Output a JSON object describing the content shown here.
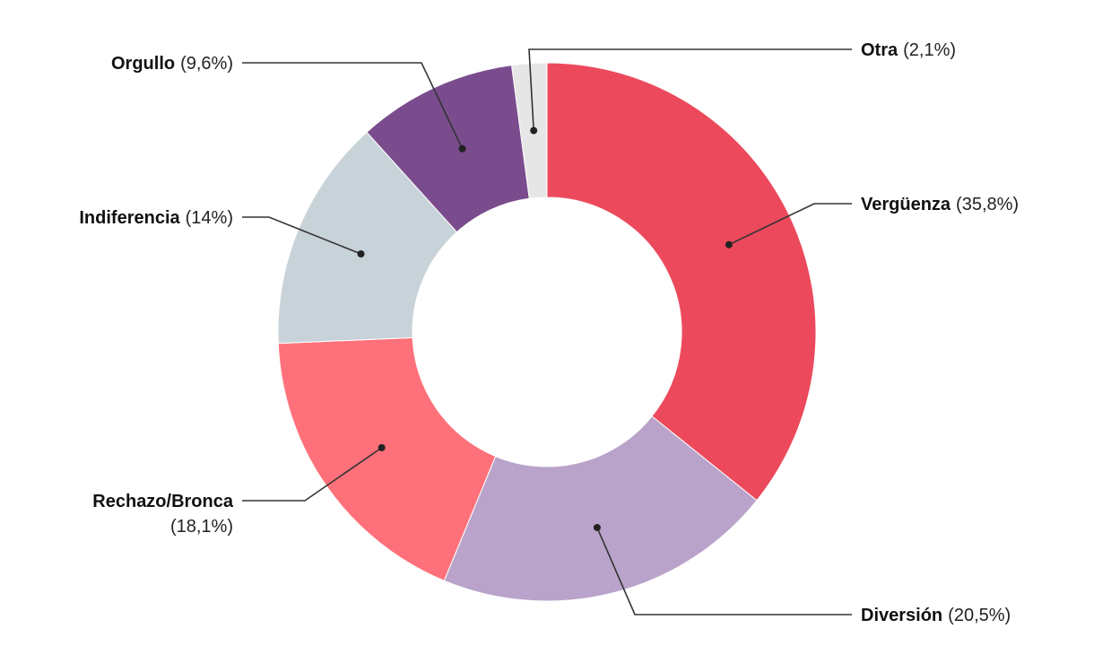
{
  "chart_data": {
    "type": "pie",
    "donut": true,
    "start_angle_deg": 0,
    "direction": "clockwise",
    "slices": [
      {
        "name": "Vergüenza",
        "value": 35.8,
        "pct_label": "(35,8%)",
        "color": "#EC4A5C"
      },
      {
        "name": "Diversión",
        "value": 20.5,
        "pct_label": "(20,5%)",
        "color": "#B9A3CA"
      },
      {
        "name": "Rechazo/Bronca",
        "value": 18.1,
        "pct_label": "(18,1%)",
        "color": "#FF717A"
      },
      {
        "name": "Indiferencia",
        "value": 14.0,
        "pct_label": "(14%)",
        "color": "#C8D2D9"
      },
      {
        "name": "Orgullo",
        "value": 9.6,
        "pct_label": "(9,6%)",
        "color": "#7A4C8D"
      },
      {
        "name": "Otra",
        "value": 2.1,
        "pct_label": "(2,1%)",
        "color": "#E6E6E6"
      }
    ]
  }
}
